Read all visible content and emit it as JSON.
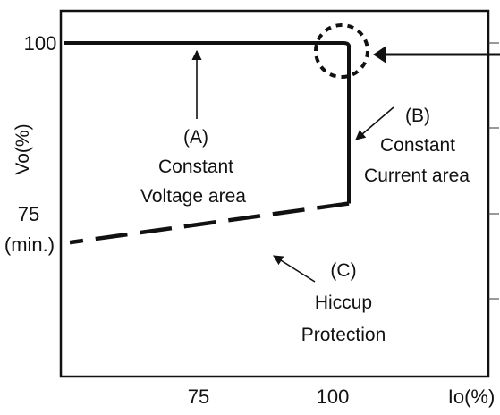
{
  "chart_data": {
    "type": "line",
    "title": "",
    "xlabel": "Io(%)",
    "ylabel": "Vo(%)",
    "x_ticks": [
      "75",
      "100"
    ],
    "y_ticks": [
      {
        "value": 100,
        "label": "100"
      },
      {
        "value": 75,
        "label": "75",
        "sublabel": "(min.)"
      }
    ],
    "series": [
      {
        "segment": "constant-voltage",
        "style": "solid",
        "points": [
          [
            50,
            100
          ],
          [
            102,
            100
          ],
          [
            103,
            99.3
          ],
          [
            103,
            76.5
          ]
        ]
      },
      {
        "segment": "hiccup",
        "style": "dashed",
        "points": [
          [
            103,
            76.5
          ],
          [
            51,
            70.8
          ]
        ]
      }
    ],
    "annotations": [
      {
        "id": "A",
        "lines": [
          "(A)",
          "Constant",
          "Voltage area"
        ]
      },
      {
        "id": "B",
        "lines": [
          "(B)",
          "Constant",
          "Current area"
        ]
      },
      {
        "id": "C",
        "lines": [
          "(C)",
          "Hiccup",
          "Protection"
        ]
      }
    ],
    "colors": {
      "line": "#111111",
      "background": "#ffffff"
    }
  }
}
